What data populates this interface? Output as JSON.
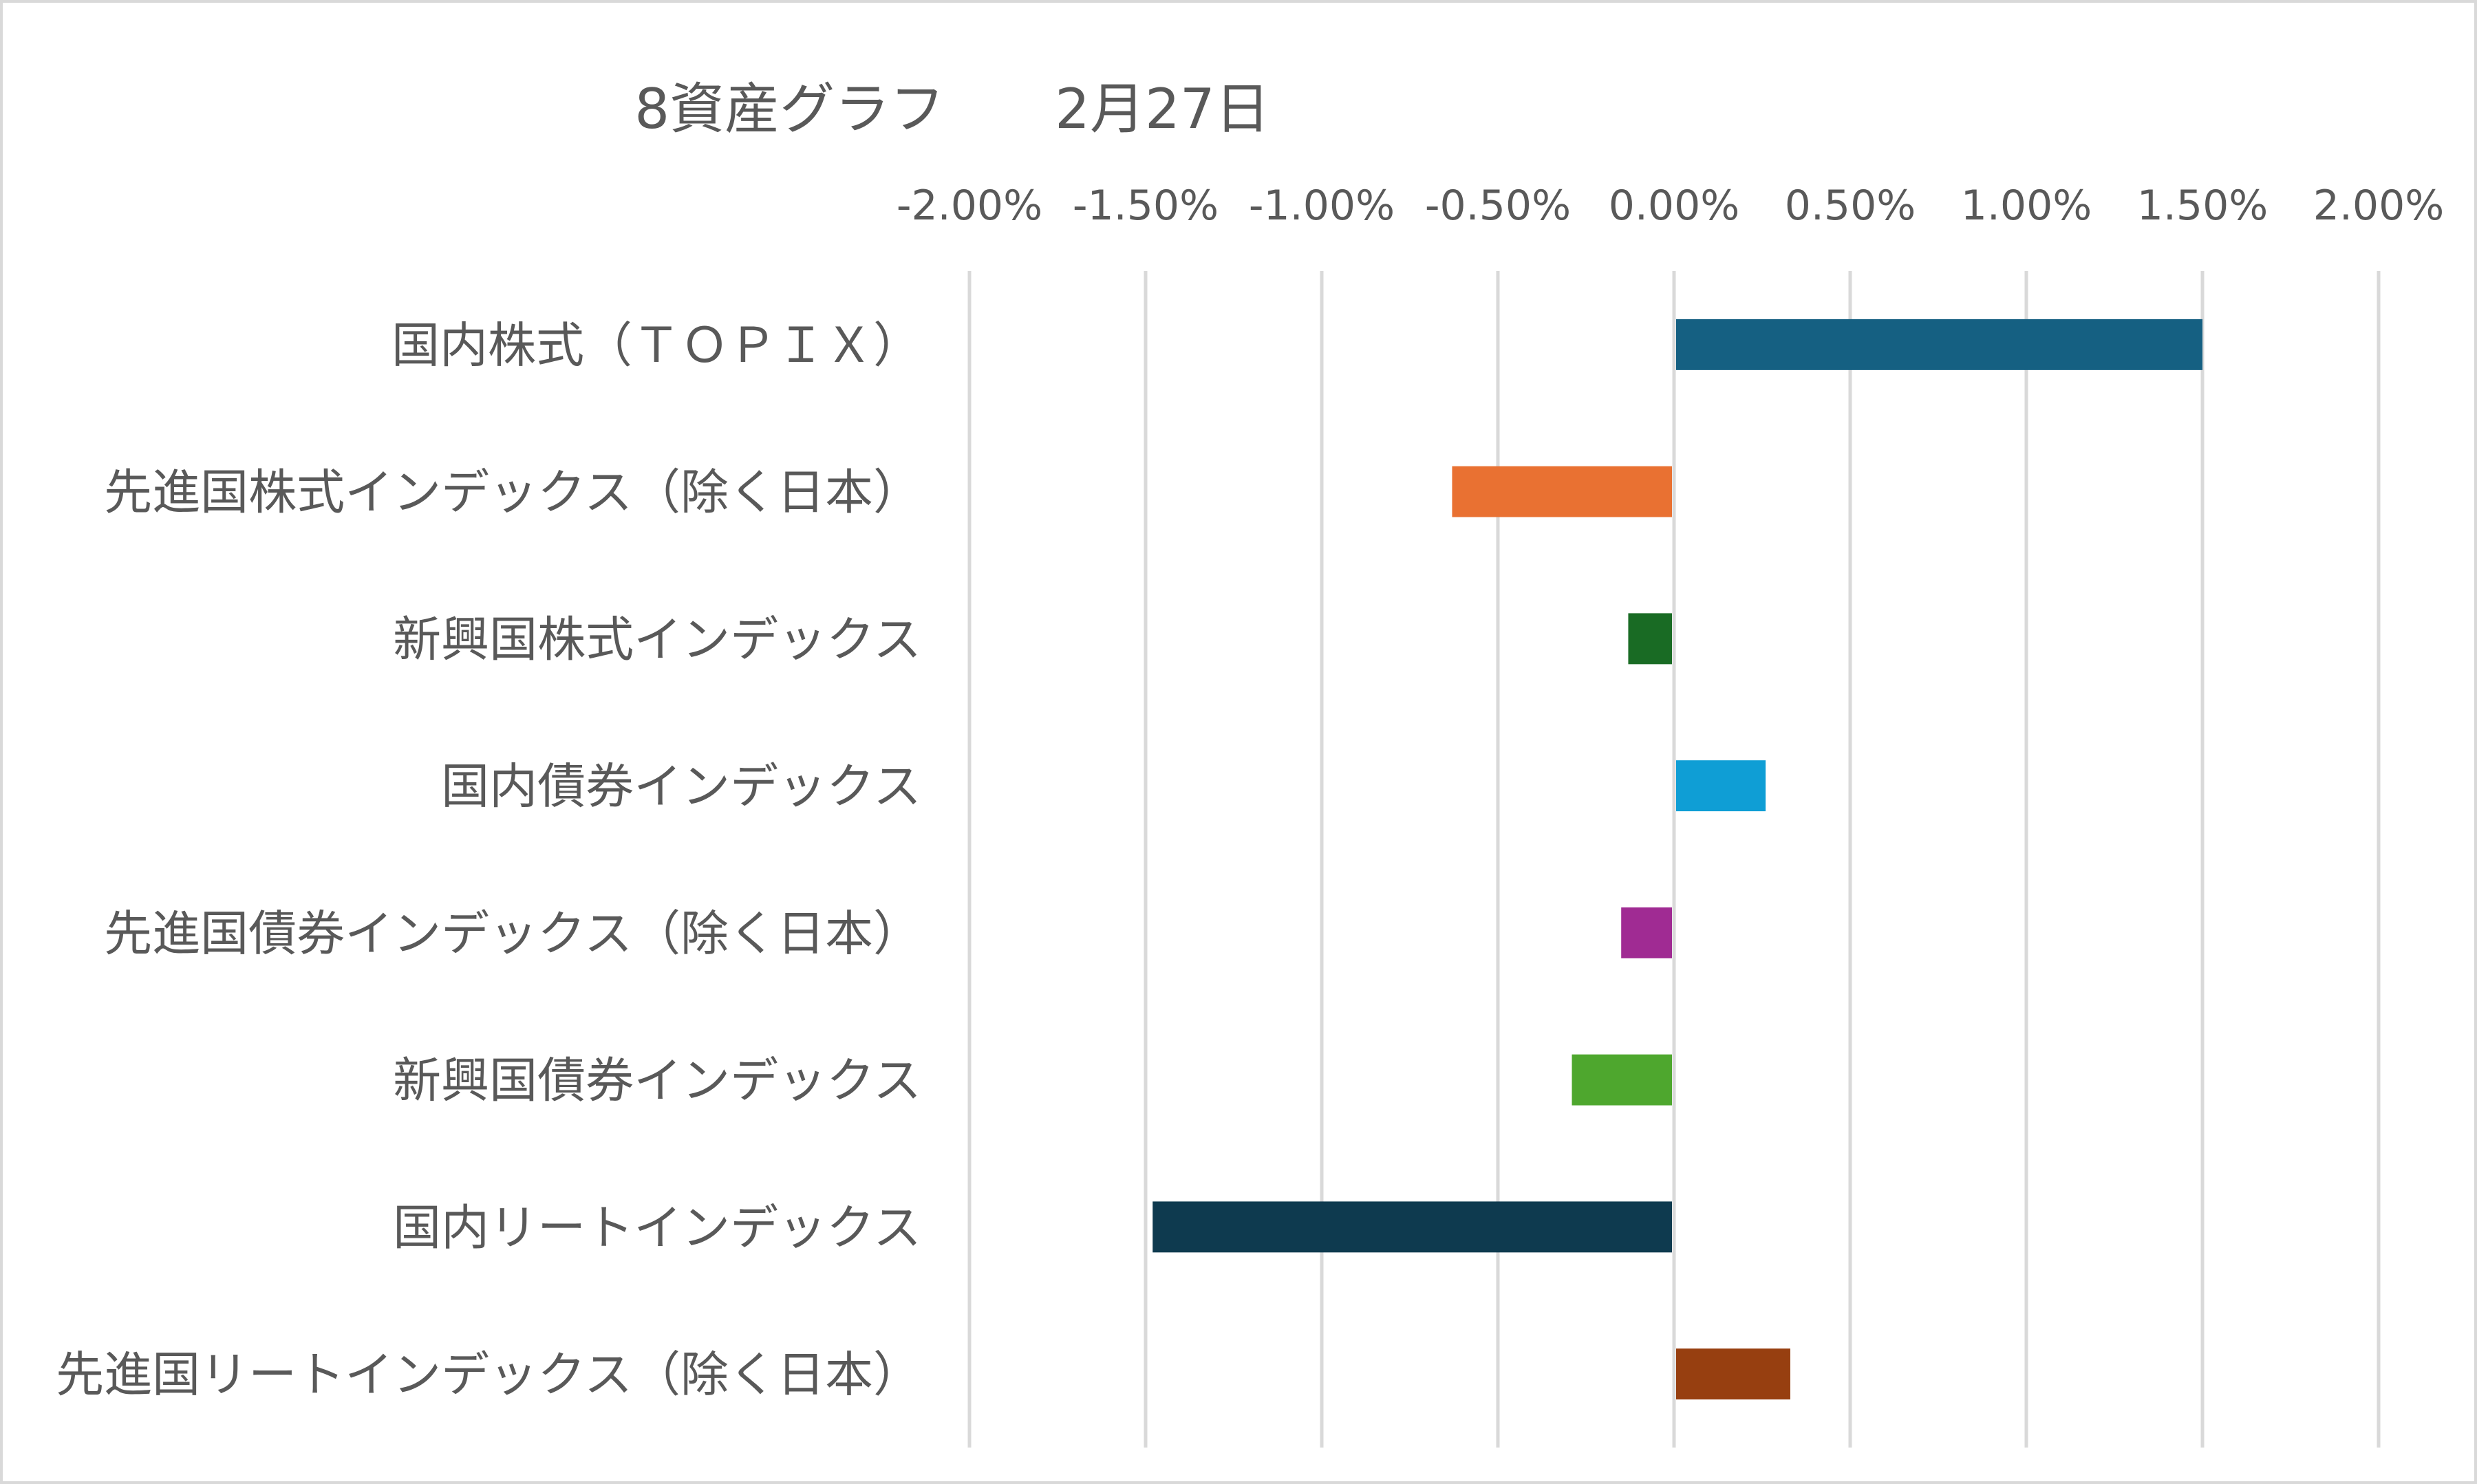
{
  "chart_data": {
    "type": "bar",
    "orientation": "horizontal",
    "title": "8資産グラフ　　2月27日",
    "categories": [
      "国内株式（ＴＯＰＩＸ）",
      "先進国株式インデックス（除く日本）",
      "新興国株式インデックス",
      "国内債券インデックス",
      "先進国債券インデックス（除く日本）",
      "新興国債券インデックス",
      "国内リートインデックス",
      "先進国リートインデックス（除く日本）"
    ],
    "values": [
      1.5,
      -0.63,
      -0.13,
      0.26,
      -0.15,
      -0.29,
      -1.48,
      0.33
    ],
    "value_unit": "%",
    "colors": [
      "#156082",
      "#e97132",
      "#196b24",
      "#0f9ed5",
      "#a02b93",
      "#4ea72e",
      "#0e3a4f",
      "#973f10"
    ],
    "xlim": [
      -2.0,
      2.0
    ],
    "xticks": [
      "-2.00%",
      "-1.50%",
      "-1.00%",
      "-0.50%",
      "0.00%",
      "0.50%",
      "1.00%",
      "1.50%",
      "2.00%"
    ],
    "xaxis_position": "top",
    "grid": "vertical",
    "legend": "none",
    "xlabel": "",
    "ylabel": ""
  }
}
